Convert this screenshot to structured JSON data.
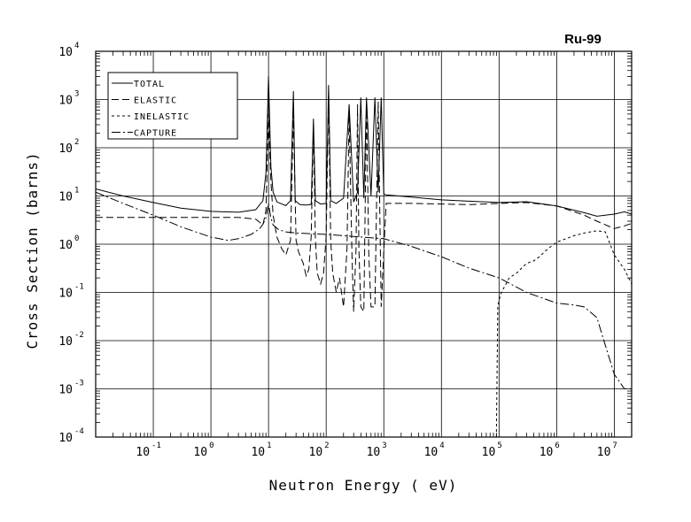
{
  "chart_data": {
    "type": "line",
    "title": "Ru-99",
    "xlabel": "Neutron Energy ( eV)",
    "ylabel": "Cross Section (barns)",
    "x_scale": "log",
    "y_scale": "log",
    "xlim": [
      0.01,
      20000000
    ],
    "ylim": [
      0.0001,
      10000
    ],
    "grid": true,
    "legend_position": "top-left",
    "x_tick_labels": [
      {
        "base": "10",
        "exp": "-1",
        "value": 0.1
      },
      {
        "base": "10",
        "exp": "0",
        "value": 1
      },
      {
        "base": "10",
        "exp": "1",
        "value": 10
      },
      {
        "base": "10",
        "exp": "2",
        "value": 100
      },
      {
        "base": "10",
        "exp": "3",
        "value": 1000
      },
      {
        "base": "10",
        "exp": "4",
        "value": 10000
      },
      {
        "base": "10",
        "exp": "5",
        "value": 100000
      },
      {
        "base": "10",
        "exp": "6",
        "value": 1000000
      },
      {
        "base": "10",
        "exp": "7",
        "value": 10000000
      }
    ],
    "y_tick_labels": [
      {
        "base": "10",
        "exp": "-4",
        "value": 0.0001
      },
      {
        "base": "10",
        "exp": "-3",
        "value": 0.001
      },
      {
        "base": "10",
        "exp": "-2",
        "value": 0.01
      },
      {
        "base": "10",
        "exp": "-1",
        "value": 0.1
      },
      {
        "base": "10",
        "exp": "0",
        "value": 1
      },
      {
        "base": "10",
        "exp": "1",
        "value": 10
      },
      {
        "base": "10",
        "exp": "2",
        "value": 100
      },
      {
        "base": "10",
        "exp": "3",
        "value": 1000
      },
      {
        "base": "10",
        "exp": "4",
        "value": 10000
      }
    ],
    "series": [
      {
        "name": "TOTAL",
        "dash": "solid",
        "x": [
          0.01,
          0.03,
          0.1,
          0.3,
          1,
          3,
          6,
          8,
          9,
          10,
          11,
          12,
          14,
          20,
          24,
          27,
          29,
          35,
          45,
          55,
          60,
          65,
          80,
          100,
          110,
          120,
          150,
          200,
          250,
          300,
          350,
          400,
          450,
          500,
          600,
          700,
          800,
          900,
          1000,
          1100,
          3000,
          10000,
          30000,
          100000,
          300000,
          1000000,
          3000000,
          5000000,
          10000000,
          15000000,
          20000000
        ],
        "y": [
          14,
          10,
          7.3,
          5.6,
          4.8,
          4.6,
          5.2,
          8,
          30,
          3000,
          40,
          12,
          7.5,
          6.3,
          8,
          1500,
          8,
          6.6,
          6.5,
          6.7,
          400,
          8,
          6.8,
          7,
          2000,
          8,
          7,
          9,
          800,
          7.5,
          12,
          1100,
          9,
          1100,
          10,
          1100,
          12,
          1100,
          11,
          10.5,
          9.5,
          8.3,
          7.8,
          7.3,
          7.6,
          6.2,
          4.5,
          3.8,
          4.2,
          4.7,
          4.2
        ]
      },
      {
        "name": "ELASTIC",
        "dash": "8,4",
        "x": [
          0.01,
          0.1,
          1,
          3,
          6,
          8,
          9,
          10,
          11,
          12,
          14,
          17,
          20,
          24,
          27,
          30,
          33,
          40,
          45,
          50,
          55,
          60,
          65,
          70,
          80,
          90,
          100,
          110,
          120,
          130,
          150,
          170,
          200,
          230,
          250,
          280,
          300,
          330,
          350,
          370,
          400,
          450,
          500,
          550,
          600,
          700,
          800,
          900,
          1000,
          1100,
          3000,
          10000,
          30000,
          100000,
          300000,
          1000000,
          3000000,
          5000000,
          10000000,
          15000000,
          20000000
        ],
        "y": [
          3.6,
          3.6,
          3.6,
          3.6,
          3.3,
          2.5,
          5,
          500,
          20,
          4,
          1.4,
          0.8,
          0.6,
          1.2,
          500,
          1.2,
          0.7,
          0.4,
          0.22,
          0.3,
          1.5,
          300,
          1.3,
          0.25,
          0.15,
          0.25,
          1.5,
          1300,
          1.2,
          0.25,
          0.1,
          0.2,
          0.05,
          0.8,
          500,
          0.6,
          0.04,
          0.8,
          800,
          0.8,
          0.05,
          0.04,
          800,
          0.6,
          0.05,
          0.05,
          900,
          0.05,
          0.7,
          7,
          7,
          6.8,
          6.6,
          7,
          7.3,
          6.2,
          4,
          3,
          2.1,
          2.4,
          2.7
        ]
      },
      {
        "name": "INELASTIC",
        "dash": "3,3",
        "x": [
          90000,
          95000,
          100000,
          110000,
          150000,
          200000,
          300000,
          400000,
          500000,
          700000,
          1000000,
          2000000,
          3000000,
          5000000,
          7000000,
          10000000,
          15000000,
          20000000
        ],
        "y": [
          0.0001,
          0.05,
          0.07,
          0.1,
          0.2,
          0.25,
          0.4,
          0.45,
          0.55,
          0.8,
          1.1,
          1.5,
          1.7,
          1.9,
          1.8,
          0.6,
          0.3,
          0.15
        ]
      },
      {
        "name": "CAPTURE",
        "dash": "10,3,2,3",
        "x": [
          0.01,
          0.03,
          0.1,
          0.3,
          1,
          2,
          3,
          5,
          7,
          8,
          9,
          10,
          11,
          12,
          15,
          20,
          30,
          100,
          1000,
          3000,
          10000,
          30000,
          100000,
          300000,
          1000000,
          2000000,
          3000000,
          5000000,
          7000000,
          10000000,
          15000000,
          20000000
        ],
        "y": [
          12,
          7,
          4,
          2.3,
          1.4,
          1.2,
          1.3,
          1.6,
          2.1,
          2.6,
          3.5,
          7,
          3.5,
          2.5,
          2,
          1.8,
          1.7,
          1.6,
          1.3,
          0.9,
          0.55,
          0.32,
          0.2,
          0.1,
          0.06,
          0.055,
          0.05,
          0.03,
          0.008,
          0.002,
          0.001,
          0.001
        ]
      }
    ]
  }
}
